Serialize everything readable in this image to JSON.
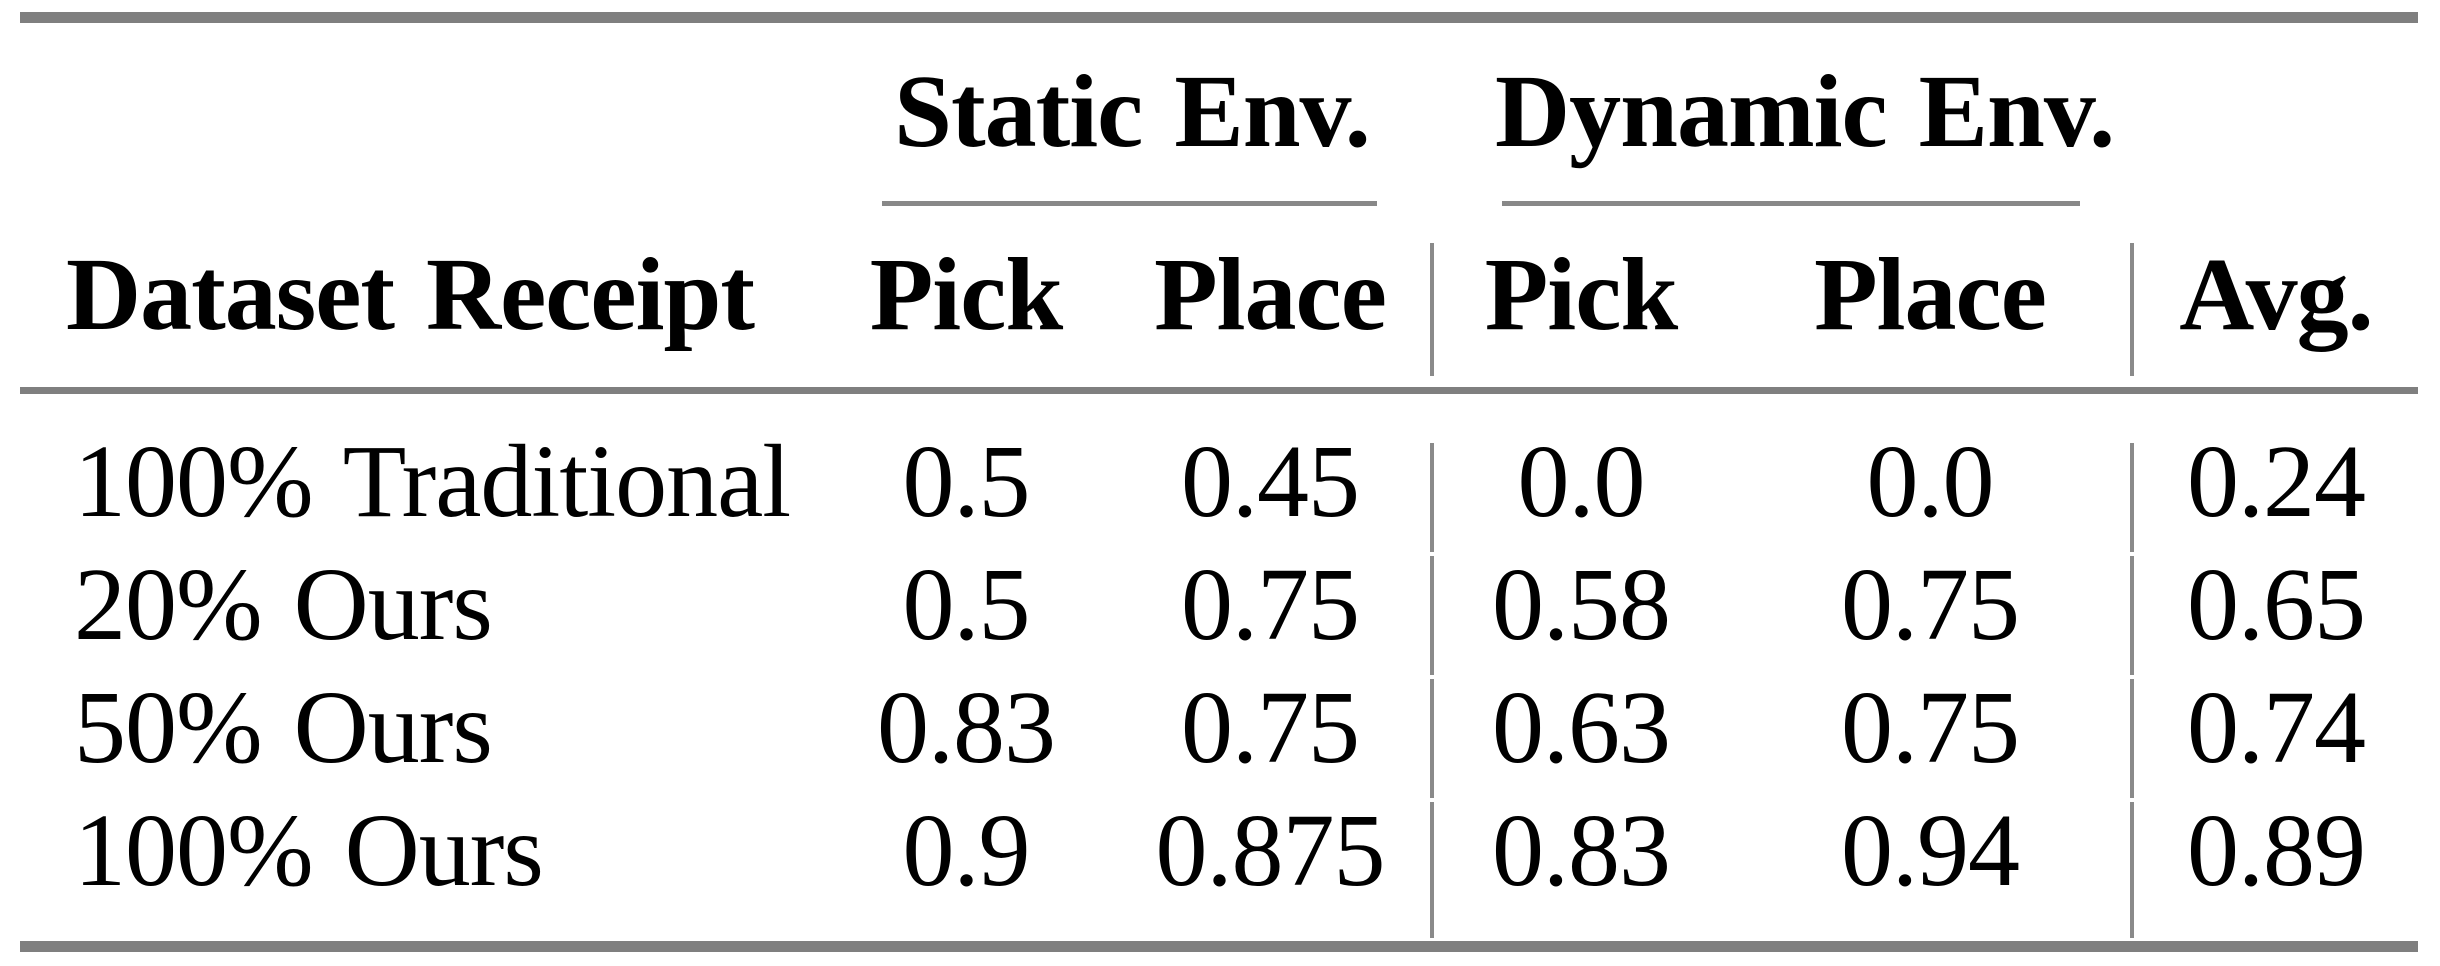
{
  "table": {
    "group_headers": [
      {
        "label": "Static Env."
      },
      {
        "label": "Dynamic Env."
      }
    ],
    "column_headers": [
      "Dataset Receipt",
      "Pick",
      "Place",
      "Pick",
      "Place",
      "Avg."
    ],
    "rows": [
      {
        "label": "100% Traditional",
        "values": [
          "0.5",
          "0.45",
          "0.0",
          "0.0",
          "0.24"
        ]
      },
      {
        "label": "20% Ours",
        "values": [
          "0.5",
          "0.75",
          "0.58",
          "0.75",
          "0.65"
        ]
      },
      {
        "label": "50% Ours",
        "values": [
          "0.83",
          "0.75",
          "0.63",
          "0.75",
          "0.74"
        ]
      },
      {
        "label": "100% Ours",
        "values": [
          "0.9",
          "0.875",
          "0.83",
          "0.94",
          "0.89"
        ]
      }
    ],
    "colors": {
      "rule": "#7f7f7f",
      "divider": "#8a8a8a",
      "text": "#000000",
      "background": "#ffffff"
    }
  }
}
